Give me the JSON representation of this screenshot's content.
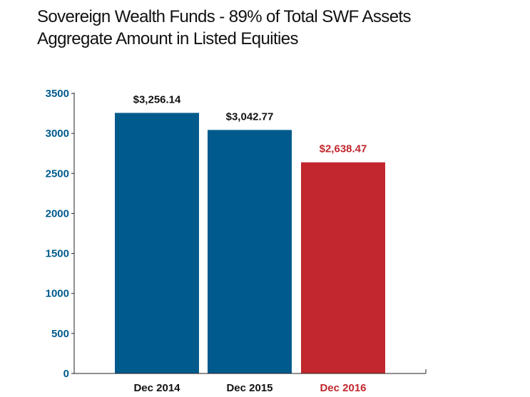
{
  "colors": {
    "blue": "#005a8c",
    "red": "#c1272d",
    "axis": "#222222",
    "text": "#111111"
  },
  "header": {
    "title": "Sovereign Wealth Funds - 89% of Total SWF Assets",
    "subtitle": "Aggregate Amount in Listed Equities"
  },
  "chart_data": {
    "type": "bar",
    "title": "Sovereign Wealth Funds - 89% of Total SWF Assets",
    "subtitle": "Aggregate Amount in Listed Equities",
    "xlabel": "",
    "ylabel": "",
    "categories": [
      "Dec 2014",
      "Dec 2015",
      "Dec 2016"
    ],
    "values": [
      3256.14,
      3042.77,
      2638.47
    ],
    "data_labels": [
      "$3,256.14",
      "$3,042.77",
      "$2,638.47"
    ],
    "bar_colors": [
      "#005a8c",
      "#005a8c",
      "#c1272d"
    ],
    "ylim": [
      0,
      3500
    ],
    "yticks": [
      0,
      500,
      1000,
      1500,
      2000,
      2500,
      3000,
      3500
    ],
    "grid": false,
    "legend": "none"
  }
}
